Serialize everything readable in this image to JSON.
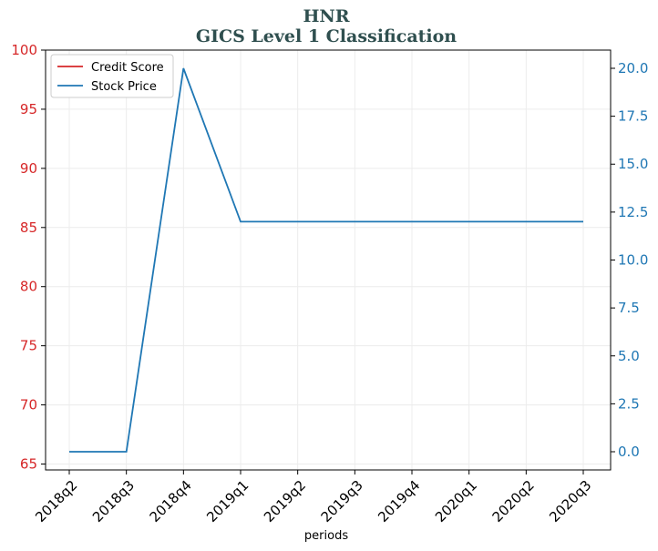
{
  "chart_data": {
    "type": "line",
    "title": "HNR",
    "subtitle": "GICS Level 1 Classification",
    "xlabel": "periods",
    "categories": [
      "2018q2",
      "2018q3",
      "2018q4",
      "2019q1",
      "2019q2",
      "2019q3",
      "2019q4",
      "2020q1",
      "2020q2",
      "2020q3"
    ],
    "left_axis": {
      "ylim": [
        64.5,
        100
      ],
      "ticks": [
        "65",
        "70",
        "75",
        "80",
        "85",
        "90",
        "95",
        "100"
      ],
      "color": "#d62728"
    },
    "right_axis": {
      "ylim": [
        -0.95,
        20.95
      ],
      "ticks": [
        "0.0",
        "2.5",
        "5.0",
        "7.5",
        "10.0",
        "12.5",
        "15.0",
        "17.5",
        "20.0"
      ],
      "color": "#1f77b4"
    },
    "series": [
      {
        "name": "Credit Score",
        "axis": "left",
        "color": "#d62728",
        "values": [
          null,
          null,
          null,
          null,
          null,
          null,
          null,
          null,
          null,
          null
        ]
      },
      {
        "name": "Stock Price",
        "axis": "right",
        "color": "#1f77b4",
        "values": [
          0.0,
          0.0,
          20.0,
          12.0,
          12.0,
          12.0,
          12.0,
          12.0,
          12.0,
          12.0
        ]
      }
    ],
    "grid": true,
    "legend_position": "top-left"
  }
}
